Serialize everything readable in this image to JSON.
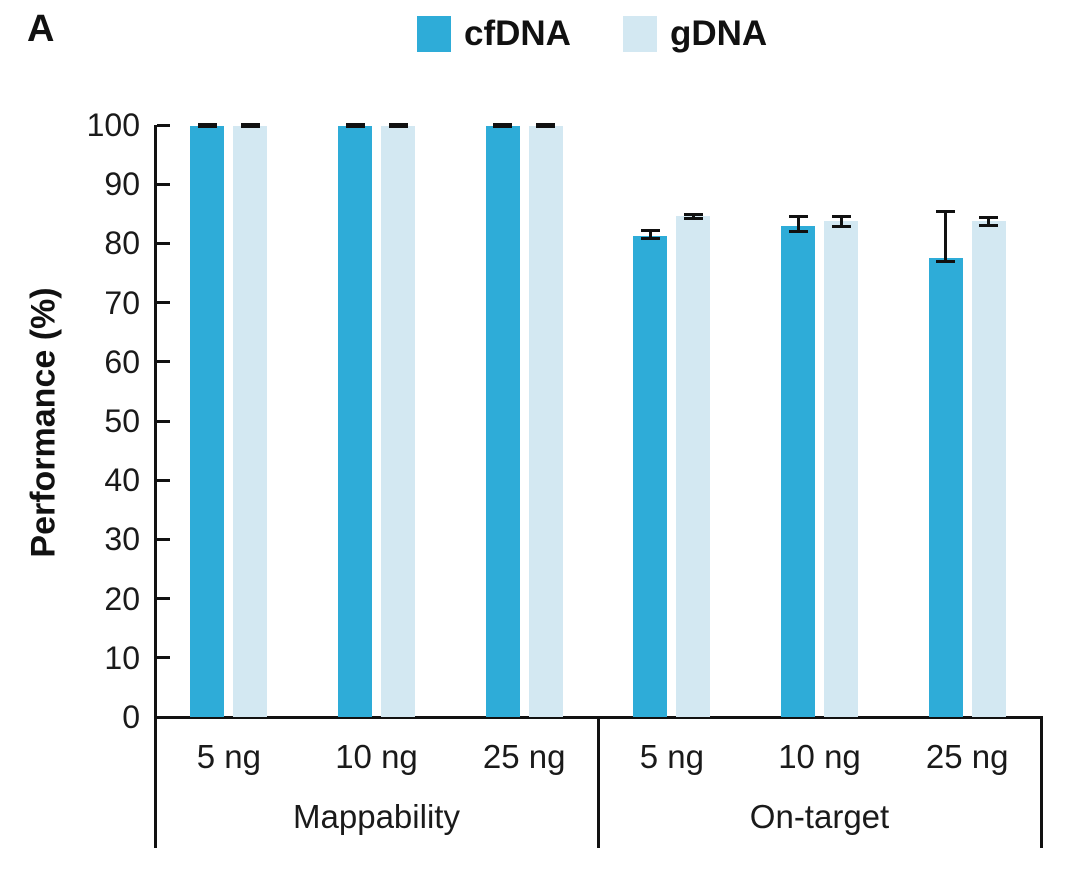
{
  "figure": {
    "panel_label": "A"
  },
  "chart_data": {
    "type": "bar",
    "title": "",
    "panel_label": "A",
    "ylabel": "Performance (%)",
    "xlabel": "",
    "ylim": [
      0,
      100
    ],
    "yticks": [
      0,
      10,
      20,
      30,
      40,
      50,
      60,
      70,
      80,
      90,
      100
    ],
    "grid": false,
    "legend_position": "top",
    "error_bars": true,
    "groups": [
      {
        "label": "Mappability",
        "categories": [
          "5 ng",
          "10 ng",
          "25 ng"
        ]
      },
      {
        "label": "On-target",
        "categories": [
          "5 ng",
          "10 ng",
          "25 ng"
        ]
      }
    ],
    "series": [
      {
        "name": "cfDNA",
        "color": "#2EACD8",
        "values": [
          99.9,
          99.9,
          99.9,
          81.3,
          83.0,
          77.5
        ],
        "err_up": [
          0.2,
          0.2,
          0.2,
          1.0,
          1.7,
          8.0
        ],
        "err_down": [
          0.2,
          0.2,
          0.2,
          0.6,
          1.0,
          0.6
        ]
      },
      {
        "name": "gDNA",
        "color": "#D3E8F2",
        "values": [
          99.9,
          99.9,
          99.9,
          84.6,
          83.8,
          83.7
        ],
        "err_up": [
          0.2,
          0.2,
          0.2,
          0.4,
          0.9,
          0.8
        ],
        "err_down": [
          0.2,
          0.2,
          0.2,
          0.4,
          1.0,
          0.8
        ]
      }
    ]
  }
}
